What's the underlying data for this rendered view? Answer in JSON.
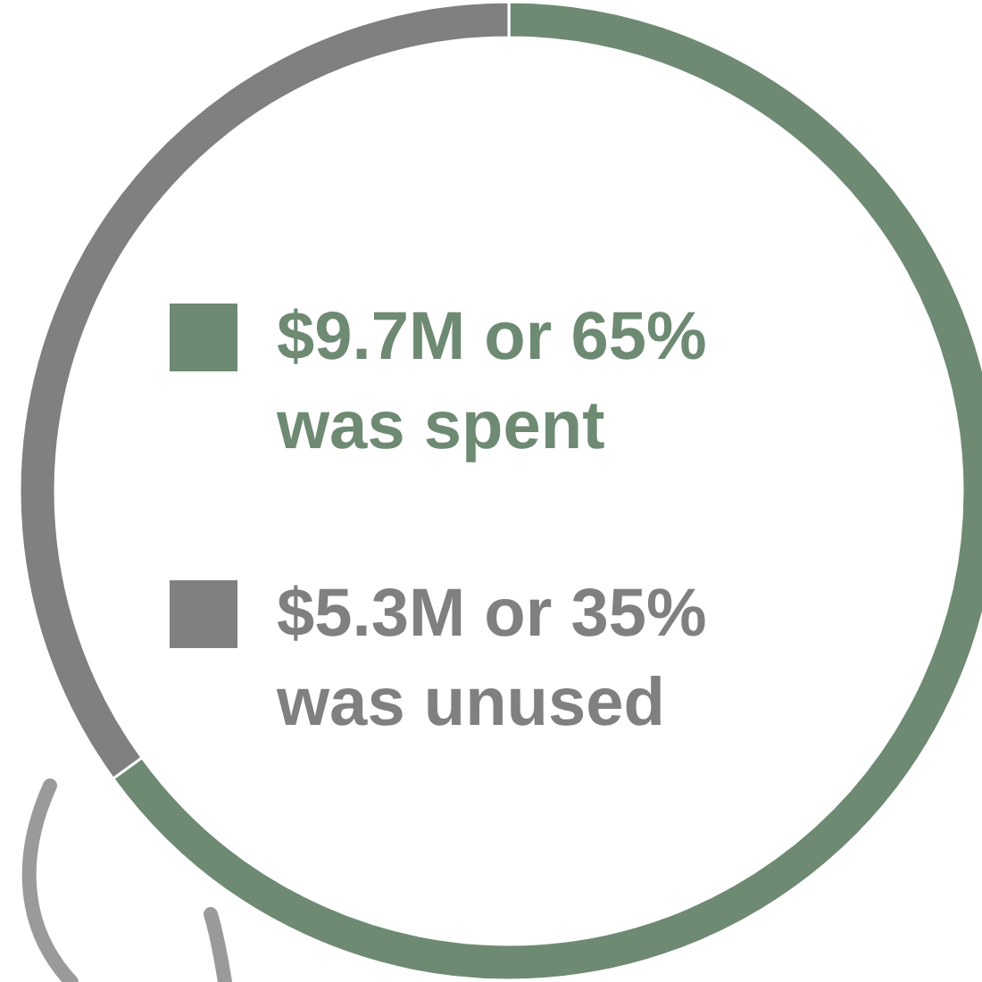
{
  "chart_data": {
    "type": "donut",
    "categories": [
      "$9.7M or 65% was spent",
      "$5.3M or 35% was unused"
    ],
    "values": [
      65,
      35
    ],
    "colors": [
      "#6e8a73",
      "#808080"
    ],
    "legend": "center"
  }
}
